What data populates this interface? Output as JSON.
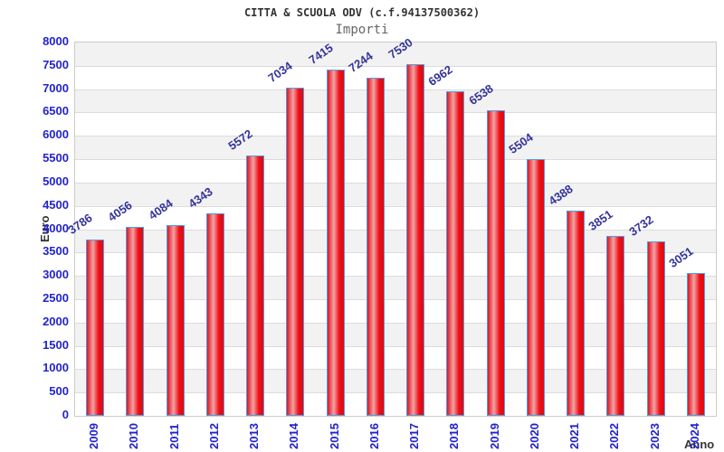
{
  "chart_data": {
    "type": "bar",
    "title": "CITTA & SCUOLA ODV (c.f.94137500362)",
    "subtitle": "Importi",
    "xlabel": "Anno",
    "ylabel": "Euro",
    "categories": [
      "2009",
      "2010",
      "2011",
      "2012",
      "2013",
      "2014",
      "2015",
      "2016",
      "2017",
      "2018",
      "2019",
      "2020",
      "2021",
      "2022",
      "2023",
      "2024"
    ],
    "values": [
      3786,
      4056,
      4084,
      4343,
      5572,
      7034,
      7415,
      7244,
      7530,
      6962,
      6538,
      5504,
      4388,
      3851,
      3732,
      3051
    ],
    "ylim": [
      0,
      8000
    ],
    "ytick_step": 500,
    "grid": "horizontal-bands-alternating",
    "legend": "none",
    "colors": {
      "bar_gradient": [
        "#e8101c",
        "#efa4a4",
        "#f20d15",
        "#d90c14"
      ],
      "bar_border": "#4aa0e8",
      "axis_tick_text": "#2323cc",
      "value_label_text": "#333399",
      "band_gray": "#f2f2f2",
      "band_white": "#ffffff",
      "gridline": "#dcdcdc",
      "plot_border": "#cccccc",
      "title_text": "#333333",
      "subtitle_text": "#666666",
      "axis_title_text": "#333333",
      "background": "#ffffff"
    }
  }
}
